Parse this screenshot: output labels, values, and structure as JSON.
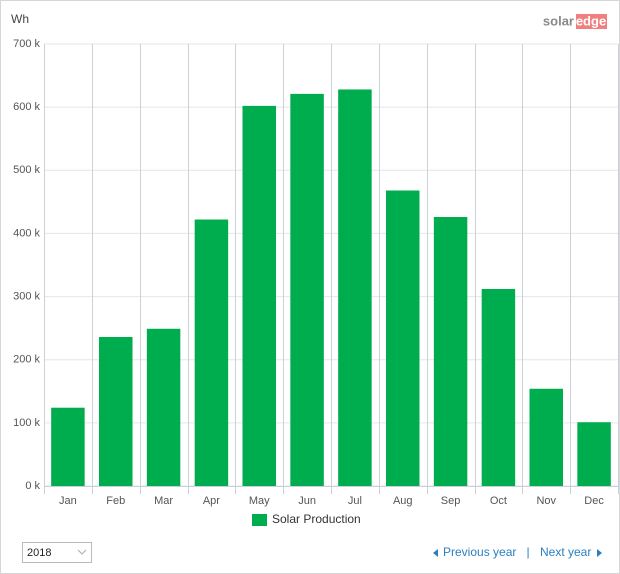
{
  "brand": {
    "first": "solar",
    "second": "edge"
  },
  "chart_data": {
    "type": "bar",
    "y_label": "Wh",
    "categories": [
      "Jan",
      "Feb",
      "Mar",
      "Apr",
      "May",
      "Jun",
      "Jul",
      "Aug",
      "Sep",
      "Oct",
      "Nov",
      "Dec"
    ],
    "series": [
      {
        "name": "Solar Production",
        "color": "#00ad4e",
        "values": [
          124000,
          236000,
          249000,
          422000,
          602000,
          621000,
          628000,
          468000,
          426000,
          312000,
          154000,
          101000
        ]
      }
    ],
    "ylim": [
      0,
      700000
    ],
    "yticks": [
      {
        "value": 0,
        "label": "0 k"
      },
      {
        "value": 100000,
        "label": "100 k"
      },
      {
        "value": 200000,
        "label": "200 k"
      },
      {
        "value": 300000,
        "label": "300 k"
      },
      {
        "value": 400000,
        "label": "400 k"
      },
      {
        "value": 500000,
        "label": "500 k"
      },
      {
        "value": 600000,
        "label": "600 k"
      },
      {
        "value": 700000,
        "label": "700 k"
      }
    ],
    "grid": true
  },
  "controls": {
    "year": "2018",
    "previous": "Previous year",
    "separator": "|",
    "next": "Next year"
  }
}
